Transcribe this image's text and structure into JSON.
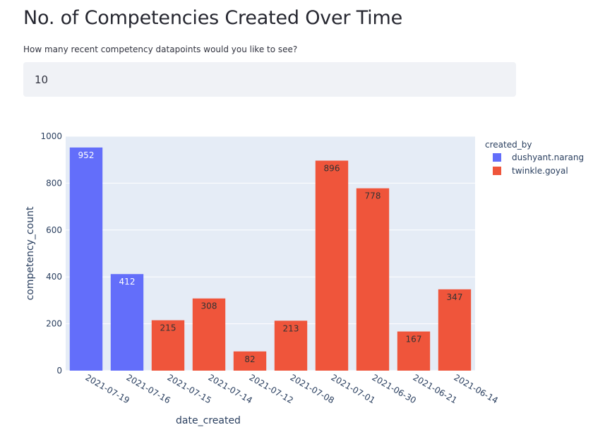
{
  "header": {
    "title": "No. of Competencies Created Over Time",
    "question": "How many recent competency datapoints would you like to see?"
  },
  "input": {
    "value": "10"
  },
  "chart_data": {
    "type": "bar",
    "xlabel": "date_created",
    "ylabel": "competency_count",
    "ylim": [
      0,
      1000
    ],
    "yticks": [
      0,
      200,
      400,
      600,
      800,
      1000
    ],
    "grid": true,
    "legend": {
      "title": "created_by",
      "position": "top-right"
    },
    "categories": [
      "2021-07-19",
      "2021-07-16",
      "2021-07-15",
      "2021-07-14",
      "2021-07-12",
      "2021-07-08",
      "2021-07-01",
      "2021-06-30",
      "2021-06-21",
      "2021-06-14"
    ],
    "values": [
      952,
      412,
      215,
      308,
      82,
      213,
      896,
      778,
      167,
      347
    ],
    "created_by": [
      "dushyant.narang",
      "dushyant.narang",
      "twinkle.goyal",
      "twinkle.goyal",
      "twinkle.goyal",
      "twinkle.goyal",
      "twinkle.goyal",
      "twinkle.goyal",
      "twinkle.goyal",
      "twinkle.goyal"
    ],
    "series": [
      {
        "name": "dushyant.narang",
        "color": "#636efa"
      },
      {
        "name": "twinkle.goyal",
        "color": "#ef553b"
      }
    ]
  }
}
